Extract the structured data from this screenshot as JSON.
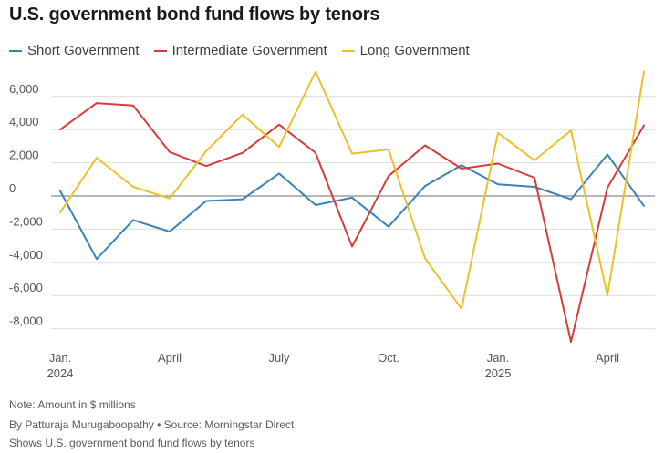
{
  "header": {
    "title": "U.S. government bond fund flows by tenors"
  },
  "footer": {
    "note": "Note: Amount in $ millions",
    "byline": "By Patturaja Murugaboopathy • Source: Morningstar Direct",
    "caption": "Shows U.S. government bond fund flows by tenors"
  },
  "chart_data": {
    "type": "line",
    "title": "U.S. government bond fund flows by tenors",
    "xlabel": "",
    "ylabel": "",
    "ylim": [
      -8800,
      7500
    ],
    "grid": true,
    "legend_position": "top-left",
    "x_ticks": [
      {
        "index": 0,
        "line1": "Jan.",
        "line2": "2024"
      },
      {
        "index": 3,
        "line1": "April",
        "line2": ""
      },
      {
        "index": 6,
        "line1": "July",
        "line2": ""
      },
      {
        "index": 9,
        "line1": "Oct.",
        "line2": ""
      },
      {
        "index": 12,
        "line1": "Jan.",
        "line2": "2025"
      },
      {
        "index": 15,
        "line1": "April",
        "line2": ""
      }
    ],
    "y_ticks": [
      6000,
      4000,
      2000,
      0,
      -2000,
      -4000,
      -6000,
      -8000
    ],
    "y_tick_labels": [
      "6,000",
      "4,000",
      "2,000",
      "0",
      "-2,000",
      "-4,000",
      "-6,000",
      "-8,000"
    ],
    "x": [
      "Jan. 2024",
      "Feb. 2024",
      "Mar. 2024",
      "Apr. 2024",
      "May 2024",
      "Jun. 2024",
      "Jul. 2024",
      "Aug. 2024",
      "Sep. 2024",
      "Oct. 2024",
      "Nov. 2024",
      "Dec. 2024",
      "Jan. 2025",
      "Feb. 2025",
      "Mar. 2025",
      "Apr. 2025",
      "May 2025"
    ],
    "series": [
      {
        "name": "Short Government",
        "color": "#3a83b8",
        "values": [
          300,
          -3800,
          -1450,
          -2150,
          -300,
          -200,
          1350,
          -550,
          -100,
          -1850,
          600,
          1850,
          700,
          550,
          -200,
          2500,
          -600
        ]
      },
      {
        "name": "Intermediate Government",
        "color": "#d43d3a",
        "values": [
          4000,
          5600,
          5450,
          2650,
          1800,
          2600,
          4300,
          2600,
          -3050,
          1200,
          3050,
          1650,
          1950,
          1100,
          -8800,
          500,
          4250
        ]
      },
      {
        "name": "Long Government",
        "color": "#ecc128",
        "values": [
          -1000,
          2300,
          550,
          -150,
          2700,
          4900,
          2950,
          7500,
          2550,
          2800,
          -3750,
          -6800,
          3800,
          2150,
          3950,
          -6000,
          7500
        ]
      }
    ]
  }
}
